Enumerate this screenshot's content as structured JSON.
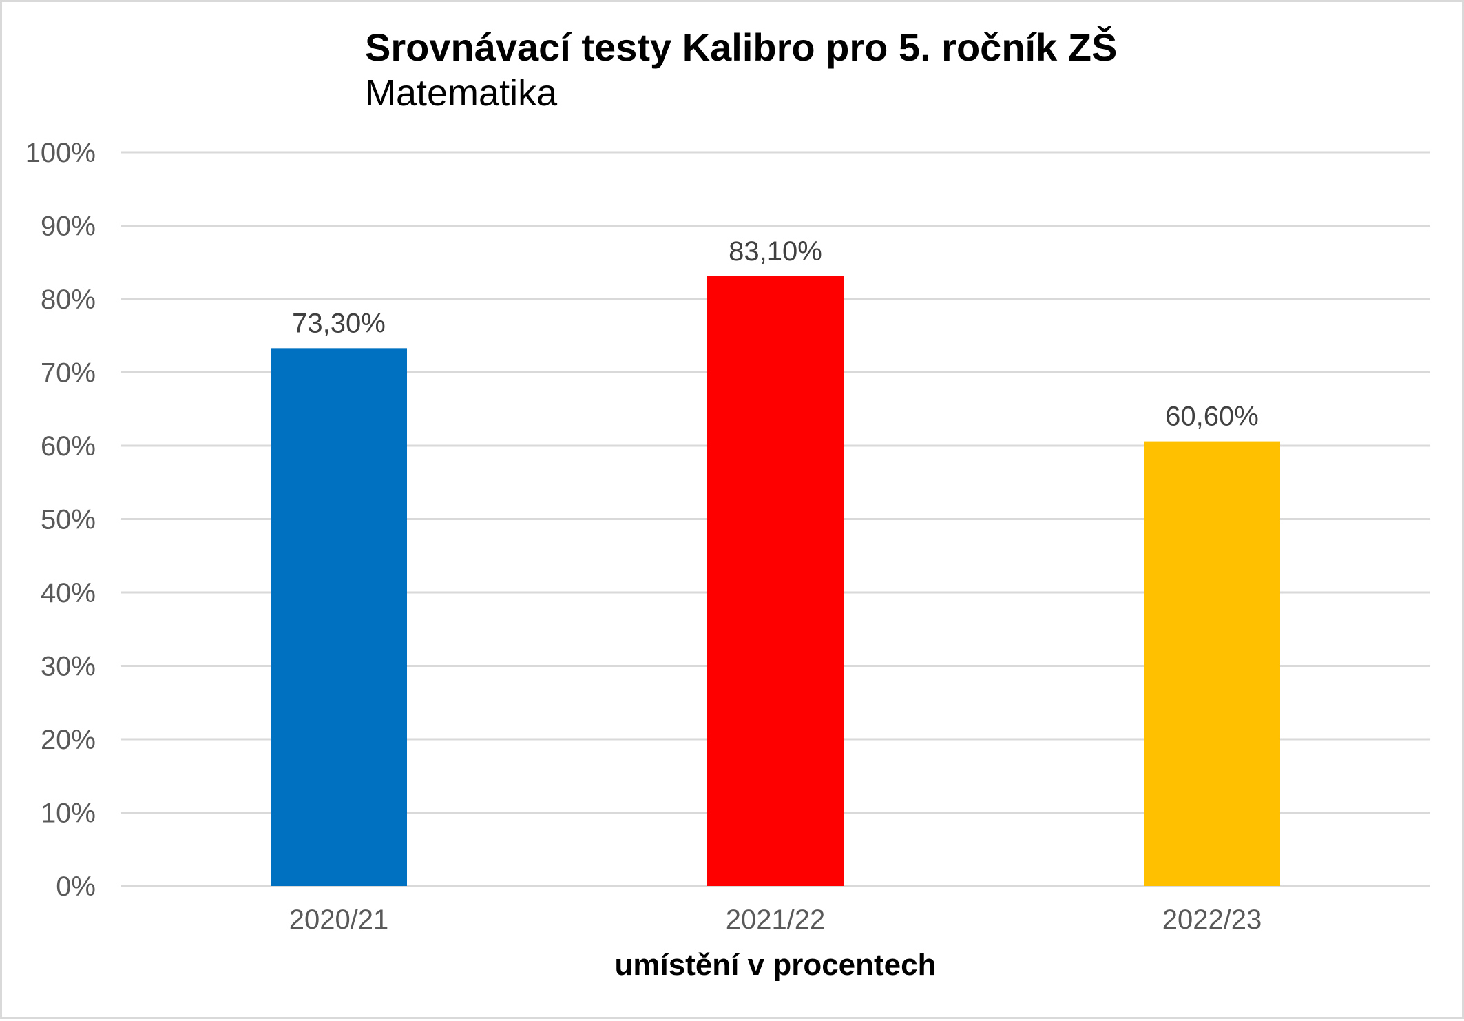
{
  "chart_data": {
    "type": "bar",
    "title": "Srovnávací testy Kalibro pro 5. ročník ZŠ",
    "subtitle": "Matematika",
    "xlabel": "umístění v procentech",
    "ylabel": "",
    "categories": [
      "2020/21",
      "2021/22",
      "2022/23"
    ],
    "values": [
      73.3,
      83.1,
      60.6
    ],
    "data_labels": [
      "73,30%",
      "83,10%",
      "60,60%"
    ],
    "colors": [
      "#0070c0",
      "#ff0000",
      "#ffc000"
    ],
    "ylim": [
      0,
      100
    ],
    "yticks": [
      0,
      10,
      20,
      30,
      40,
      50,
      60,
      70,
      80,
      90,
      100
    ],
    "ytick_labels": [
      "0%",
      "10%",
      "20%",
      "30%",
      "40%",
      "50%",
      "60%",
      "70%",
      "80%",
      "90%",
      "100%"
    ],
    "grid": true,
    "legend": "none"
  }
}
